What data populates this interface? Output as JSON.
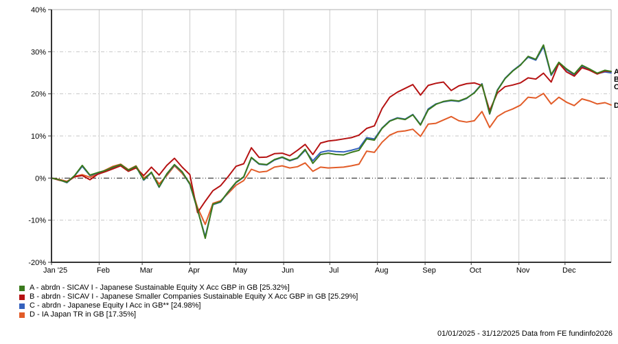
{
  "footer": {
    "text": "01/01/2025 - 31/12/2025 Data from FE fundinfo2026"
  },
  "chart_data": {
    "type": "line",
    "title": "",
    "xlabel": "",
    "ylabel": "",
    "unit": "%",
    "ylim": [
      -20,
      40
    ],
    "grid": true,
    "legend_position": "bottom-left",
    "y_axis": {
      "ticks": [
        40,
        30,
        20,
        10,
        0,
        -10,
        -20
      ],
      "tick_labels": [
        "40%",
        "30%",
        "20%",
        "10%",
        "0%",
        "-10%",
        "-20%"
      ],
      "zero_line": 0
    },
    "x_axis": {
      "range_days": [
        0,
        364
      ],
      "tick_labels": [
        "Jan '25",
        "Feb",
        "Mar",
        "Apr",
        "May",
        "Jun",
        "Jul",
        "Aug",
        "Sep",
        "Oct",
        "Nov",
        "Dec"
      ],
      "tick_days": [
        0,
        31,
        59,
        90,
        120,
        151,
        181,
        212,
        243,
        273,
        304,
        334
      ]
    },
    "sample_days": [
      0,
      5,
      10,
      15,
      20,
      25,
      30,
      35,
      40,
      45,
      50,
      55,
      60,
      65,
      70,
      75,
      80,
      85,
      90,
      95,
      100,
      105,
      110,
      115,
      120,
      125,
      130,
      135,
      140,
      145,
      150,
      155,
      160,
      165,
      170,
      175,
      180,
      185,
      190,
      195,
      200,
      205,
      210,
      215,
      220,
      225,
      230,
      235,
      240,
      245,
      250,
      255,
      260,
      265,
      270,
      275,
      280,
      285,
      290,
      295,
      300,
      305,
      310,
      315,
      320,
      325,
      330,
      335,
      340,
      345,
      350,
      355,
      360,
      364
    ],
    "series": [
      {
        "id": "A",
        "legend_text": "A - abrdn - SICAV I - Japanese Sustainable Equity X Acc GBP in GB [25.32%]",
        "name": "abrdn - SICAV I - Japanese Sustainable Equity X Acc GBP in GB",
        "final_return_pct": 25.32,
        "color": "#3a7a1d",
        "values": [
          0,
          -0.4,
          -1.0,
          0.6,
          3.0,
          0.7,
          1.3,
          1.8,
          2.6,
          3.2,
          1.9,
          2.8,
          -0.4,
          1.4,
          -2.1,
          1.0,
          3.2,
          1.5,
          -1.4,
          -7.5,
          -14.3,
          -6.2,
          -5.6,
          -3.2,
          -1.0,
          0.3,
          4.9,
          3.4,
          3.2,
          4.4,
          5.0,
          4.2,
          4.8,
          6.8,
          3.5,
          5.6,
          5.9,
          5.6,
          5.5,
          6.1,
          6.6,
          9.3,
          9.0,
          11.8,
          13.5,
          14.2,
          13.9,
          15.0,
          12.6,
          16.2,
          17.5,
          18.2,
          18.5,
          18.3,
          19.0,
          20.2,
          22.3,
          15.3,
          20.8,
          23.6,
          25.4,
          26.8,
          28.9,
          28.2,
          31.6,
          24.6,
          27.5,
          25.9,
          24.7,
          26.8,
          25.9,
          24.9,
          25.6,
          25.32
        ]
      },
      {
        "id": "B",
        "legend_text": "B - abrdn - SICAV I - Japanese Smaller Companies Sustainable Equity X Acc GBP in GB [25.29%]",
        "name": "abrdn - SICAV I - Japanese Smaller Companies Sustainable Equity X Acc GBP in GB",
        "final_return_pct": 25.29,
        "color": "#b51212",
        "values": [
          0,
          -0.5,
          -0.9,
          0.3,
          0.6,
          -0.4,
          0.9,
          1.5,
          2.2,
          2.9,
          1.6,
          2.4,
          0.6,
          2.6,
          0.7,
          3.0,
          4.7,
          2.6,
          0.8,
          -8.2,
          -5.5,
          -3.0,
          -1.8,
          0.4,
          2.8,
          3.4,
          7.2,
          4.9,
          5.0,
          5.8,
          5.9,
          5.3,
          6.6,
          8.0,
          5.6,
          8.3,
          8.8,
          9.0,
          9.3,
          9.6,
          10.2,
          11.8,
          12.4,
          16.5,
          19.2,
          20.4,
          21.3,
          22.2,
          19.7,
          22.0,
          22.5,
          22.8,
          20.8,
          21.9,
          22.4,
          22.6,
          22.0,
          16.0,
          20.2,
          21.7,
          22.1,
          22.6,
          23.8,
          23.5,
          24.9,
          22.8,
          27.3,
          25.2,
          24.2,
          26.2,
          25.6,
          24.7,
          25.4,
          25.29
        ]
      },
      {
        "id": "C",
        "legend_text": "C - abrdn - Japanese Equity I Acc in GB** [24.98%]",
        "name": "abrdn - Japanese Equity I Acc in GB**",
        "final_return_pct": 24.98,
        "color": "#3461bd",
        "values": [
          0,
          -0.4,
          -1.1,
          0.5,
          2.8,
          0.6,
          1.2,
          1.7,
          2.5,
          3.1,
          1.8,
          2.7,
          -0.5,
          1.3,
          -2.2,
          0.9,
          3.1,
          1.4,
          -1.5,
          -7.6,
          -13.9,
          -6.3,
          -5.7,
          -3.3,
          -1.1,
          0.2,
          4.8,
          3.3,
          3.1,
          4.3,
          4.9,
          4.1,
          4.7,
          6.6,
          4.1,
          6.1,
          6.5,
          6.3,
          6.2,
          6.6,
          7.1,
          9.6,
          9.3,
          11.9,
          13.6,
          14.3,
          14.0,
          15.1,
          12.7,
          16.4,
          17.6,
          18.1,
          18.4,
          18.2,
          18.9,
          20.3,
          22.4,
          15.2,
          20.9,
          23.7,
          25.5,
          26.9,
          28.7,
          28.0,
          31.2,
          24.4,
          27.2,
          25.7,
          24.5,
          26.5,
          25.6,
          24.8,
          25.2,
          24.98
        ]
      },
      {
        "id": "D",
        "legend_text": "D - IA Japan TR in GB [17.35%]",
        "name": "IA Japan TR in GB",
        "final_return_pct": 17.35,
        "color": "#e25c28",
        "values": [
          0,
          -0.3,
          -0.8,
          0.4,
          0.8,
          0.2,
          1.0,
          1.9,
          2.8,
          3.3,
          2.0,
          2.9,
          0.0,
          1.2,
          -1.4,
          0.6,
          2.9,
          1.1,
          -1.2,
          -7.0,
          -11.0,
          -6.0,
          -5.4,
          -3.6,
          -1.7,
          -0.6,
          2.1,
          1.4,
          1.6,
          2.6,
          2.9,
          2.4,
          2.7,
          3.6,
          1.6,
          2.6,
          2.4,
          2.5,
          2.6,
          2.9,
          3.3,
          6.4,
          6.1,
          8.5,
          10.2,
          11.0,
          11.2,
          11.6,
          9.9,
          12.8,
          13.0,
          13.8,
          14.6,
          13.6,
          13.3,
          13.6,
          15.8,
          12.0,
          14.6,
          15.7,
          16.4,
          17.3,
          19.2,
          19.0,
          20.1,
          17.6,
          19.2,
          18.0,
          17.2,
          18.8,
          18.3,
          17.6,
          17.9,
          17.35
        ]
      }
    ],
    "style_colors": {
      "grid_vertical": "#cccccc",
      "grid_horizontal": "#c6c6c6",
      "zero_line": "#111111",
      "axis": "#333333",
      "border": "#b0b0b0",
      "text": "#000000"
    }
  }
}
